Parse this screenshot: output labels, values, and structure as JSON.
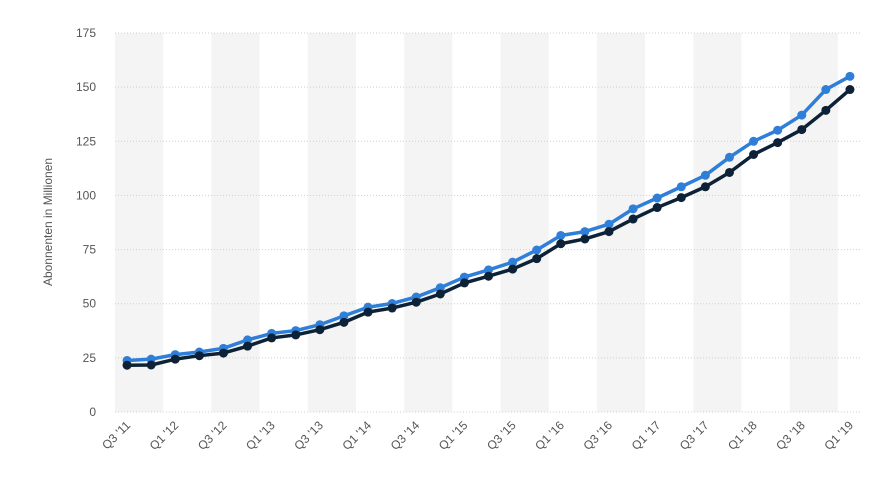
{
  "chart_data": {
    "type": "line",
    "y_label": "Abonnenten in Millionen",
    "categories": [
      "Q3 '11",
      null,
      "Q1 '12",
      null,
      "Q3 '12",
      null,
      "Q1 '13",
      null,
      "Q3 '13",
      null,
      "Q1 '14",
      null,
      "Q3 '14",
      null,
      "Q1 '15",
      null,
      "Q3 '15",
      null,
      "Q1 '16",
      null,
      "Q3 '16",
      null,
      "Q1 '17",
      null,
      "Q3 '17",
      null,
      "Q1 '18",
      null,
      "Q3 '18",
      null,
      "Q1 '19"
    ],
    "series": [
      {
        "color": "#2f7ed8",
        "values": [
          23.8,
          24.4,
          26.5,
          27.7,
          29.4,
          33.3,
          36.3,
          37.6,
          40.3,
          44.4,
          48.4,
          50.1,
          53.1,
          57.4,
          62.3,
          65.6,
          69.2,
          74.8,
          81.5,
          83.3,
          86.7,
          93.8,
          98.8,
          104.0,
          109.3,
          117.6,
          125.0,
          130.1,
          137.1,
          148.9,
          155.0
        ]
      },
      {
        "color": "#0d2236",
        "values": [
          21.6,
          21.7,
          24.4,
          26.0,
          27.2,
          30.4,
          34.2,
          35.6,
          38.0,
          41.4,
          46.1,
          48.0,
          50.7,
          54.5,
          59.6,
          62.7,
          66.0,
          70.8,
          77.7,
          79.9,
          83.3,
          89.1,
          94.4,
          99.0,
          104.0,
          110.6,
          118.9,
          124.4,
          130.4,
          139.3,
          148.9
        ]
      }
    ],
    "ylim": [
      0,
      175
    ],
    "yticks": [
      0,
      25,
      50,
      75,
      100,
      125,
      150,
      175
    ],
    "grid": true
  }
}
